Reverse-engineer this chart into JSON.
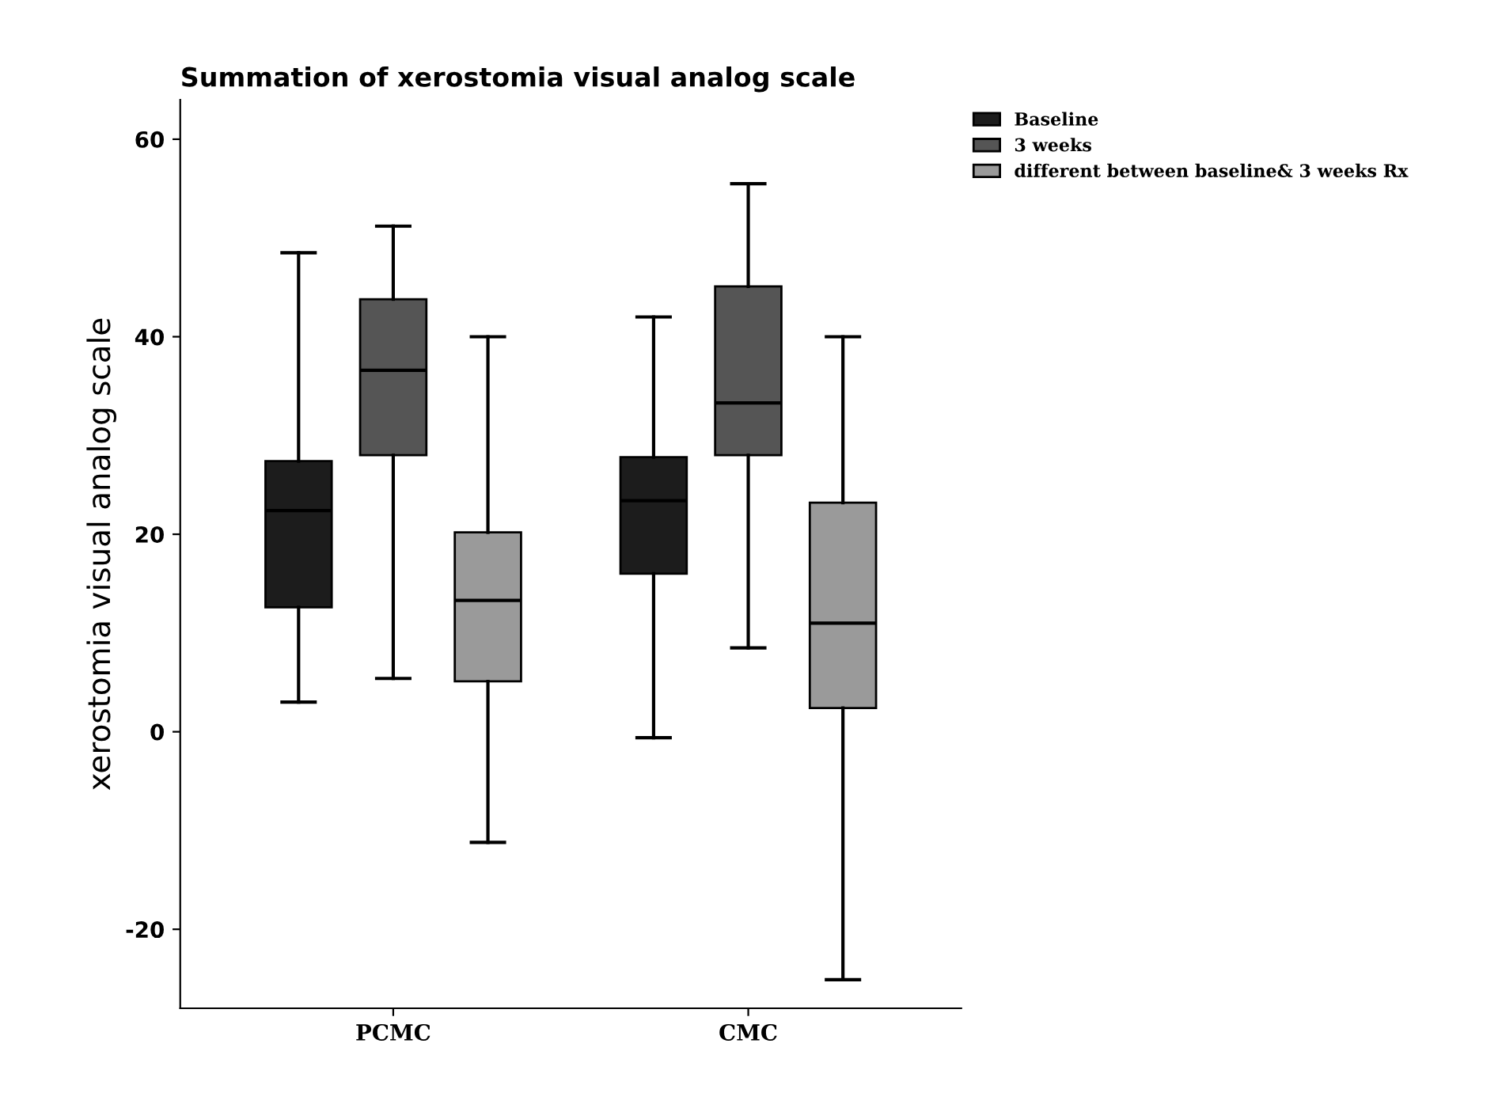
{
  "chart_data": {
    "type": "box",
    "title": "Summation of xerostomia visual analog scale",
    "ylabel": "xerostomia visual analog scale",
    "categories": [
      "PCMC",
      "CMC"
    ],
    "series": [
      {
        "name": "Baseline",
        "color": "#1c1c1c",
        "boxes": [
          {
            "low": 3,
            "q1": 12.6,
            "median": 22.4,
            "q3": 27.4,
            "high": 48.5
          },
          {
            "low": -0.6,
            "q1": 16,
            "median": 23.4,
            "q3": 27.8,
            "high": 42
          }
        ]
      },
      {
        "name": "3 weeks",
        "color": "#555555",
        "boxes": [
          {
            "low": 5.4,
            "q1": 28,
            "median": 36.6,
            "q3": 43.8,
            "high": 51.2
          },
          {
            "low": 8.5,
            "q1": 28,
            "median": 33.3,
            "q3": 45.1,
            "high": 55.5
          }
        ]
      },
      {
        "name": "different between baseline& 3 weeks Rx",
        "color": "#9a9a9a",
        "boxes": [
          {
            "low": -11.2,
            "q1": 5.1,
            "median": 13.3,
            "q3": 20.2,
            "high": 40
          },
          {
            "low": -25.1,
            "q1": 2.4,
            "median": 11,
            "q3": 23.2,
            "high": 40
          }
        ]
      }
    ],
    "ylim": [
      -28,
      64
    ],
    "yticks": [
      -20,
      0,
      20,
      40,
      60
    ],
    "grid": false,
    "legend": "top right"
  }
}
